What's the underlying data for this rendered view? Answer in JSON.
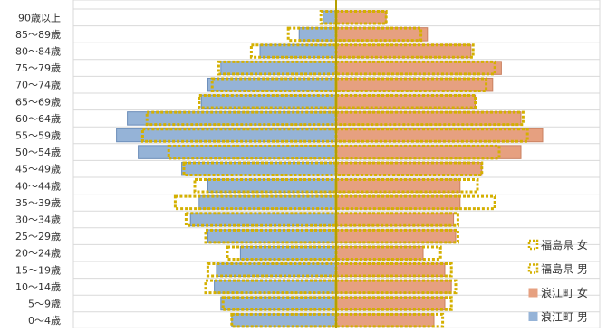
{
  "chart_data": {
    "type": "bar",
    "orientation": "horizontal",
    "layout": "population-pyramid",
    "categories": [
      "90歳以上",
      "85～89歳",
      "80～84歳",
      "75～79歳",
      "70～74歳",
      "65～69歳",
      "60～64歳",
      "55～59歳",
      "50～54歳",
      "45～49歳",
      "40～44歳",
      "35～39歳",
      "30～34歳",
      "25～29歳",
      "20～24歳",
      "15～19歳",
      "10～14歳",
      "5～9歳",
      "0～4歳"
    ],
    "series": [
      {
        "name": "浪江町 男",
        "side": "left",
        "style": "filled",
        "color": "#95B3D7",
        "border": "#6A8CB8",
        "values": [
          0.6,
          1.7,
          3.5,
          5.3,
          5.9,
          6.2,
          9.6,
          10.1,
          9.1,
          7.1,
          5.9,
          6.3,
          6.7,
          5.9,
          4.4,
          5.5,
          5.6,
          5.3,
          4.8
        ]
      },
      {
        "name": "浪江町 女",
        "side": "right",
        "style": "filled",
        "color": "#E6A080",
        "border": "#C98060",
        "values": [
          2.3,
          4.2,
          6.2,
          7.6,
          7.2,
          6.4,
          8.5,
          9.5,
          8.5,
          6.7,
          5.7,
          5.7,
          5.4,
          5.5,
          4.0,
          5.0,
          5.3,
          5.0,
          4.5
        ]
      },
      {
        "name": "福島県 女",
        "side": "right",
        "style": "dotted-outline",
        "color": "#D4B000",
        "values": [
          2.3,
          3.9,
          6.3,
          7.3,
          6.9,
          6.4,
          8.6,
          8.8,
          7.5,
          6.7,
          6.5,
          7.3,
          5.6,
          5.6,
          4.8,
          5.3,
          5.5,
          5.3,
          4.9
        ]
      },
      {
        "name": "福島県 男",
        "side": "left",
        "style": "dotted-outline",
        "color": "#D4B000",
        "values": [
          0.7,
          2.2,
          3.9,
          5.4,
          5.7,
          6.3,
          8.7,
          8.9,
          7.7,
          7.0,
          6.5,
          7.4,
          6.9,
          6.0,
          5.0,
          5.9,
          6.0,
          5.2,
          4.8
        ]
      }
    ],
    "legend": [
      {
        "label": "福島県 女",
        "style": "dotted",
        "color": "#D4B000"
      },
      {
        "label": "福島県 男",
        "style": "dotted",
        "color": "#D4B000"
      },
      {
        "label": "浪江町 女",
        "style": "filled",
        "color": "#E6A080"
      },
      {
        "label": "浪江町 男",
        "style": "filled",
        "color": "#95B3D7"
      }
    ],
    "legend_position": "bottom-right",
    "grid": true,
    "axis_line_color": "#B5A000"
  }
}
